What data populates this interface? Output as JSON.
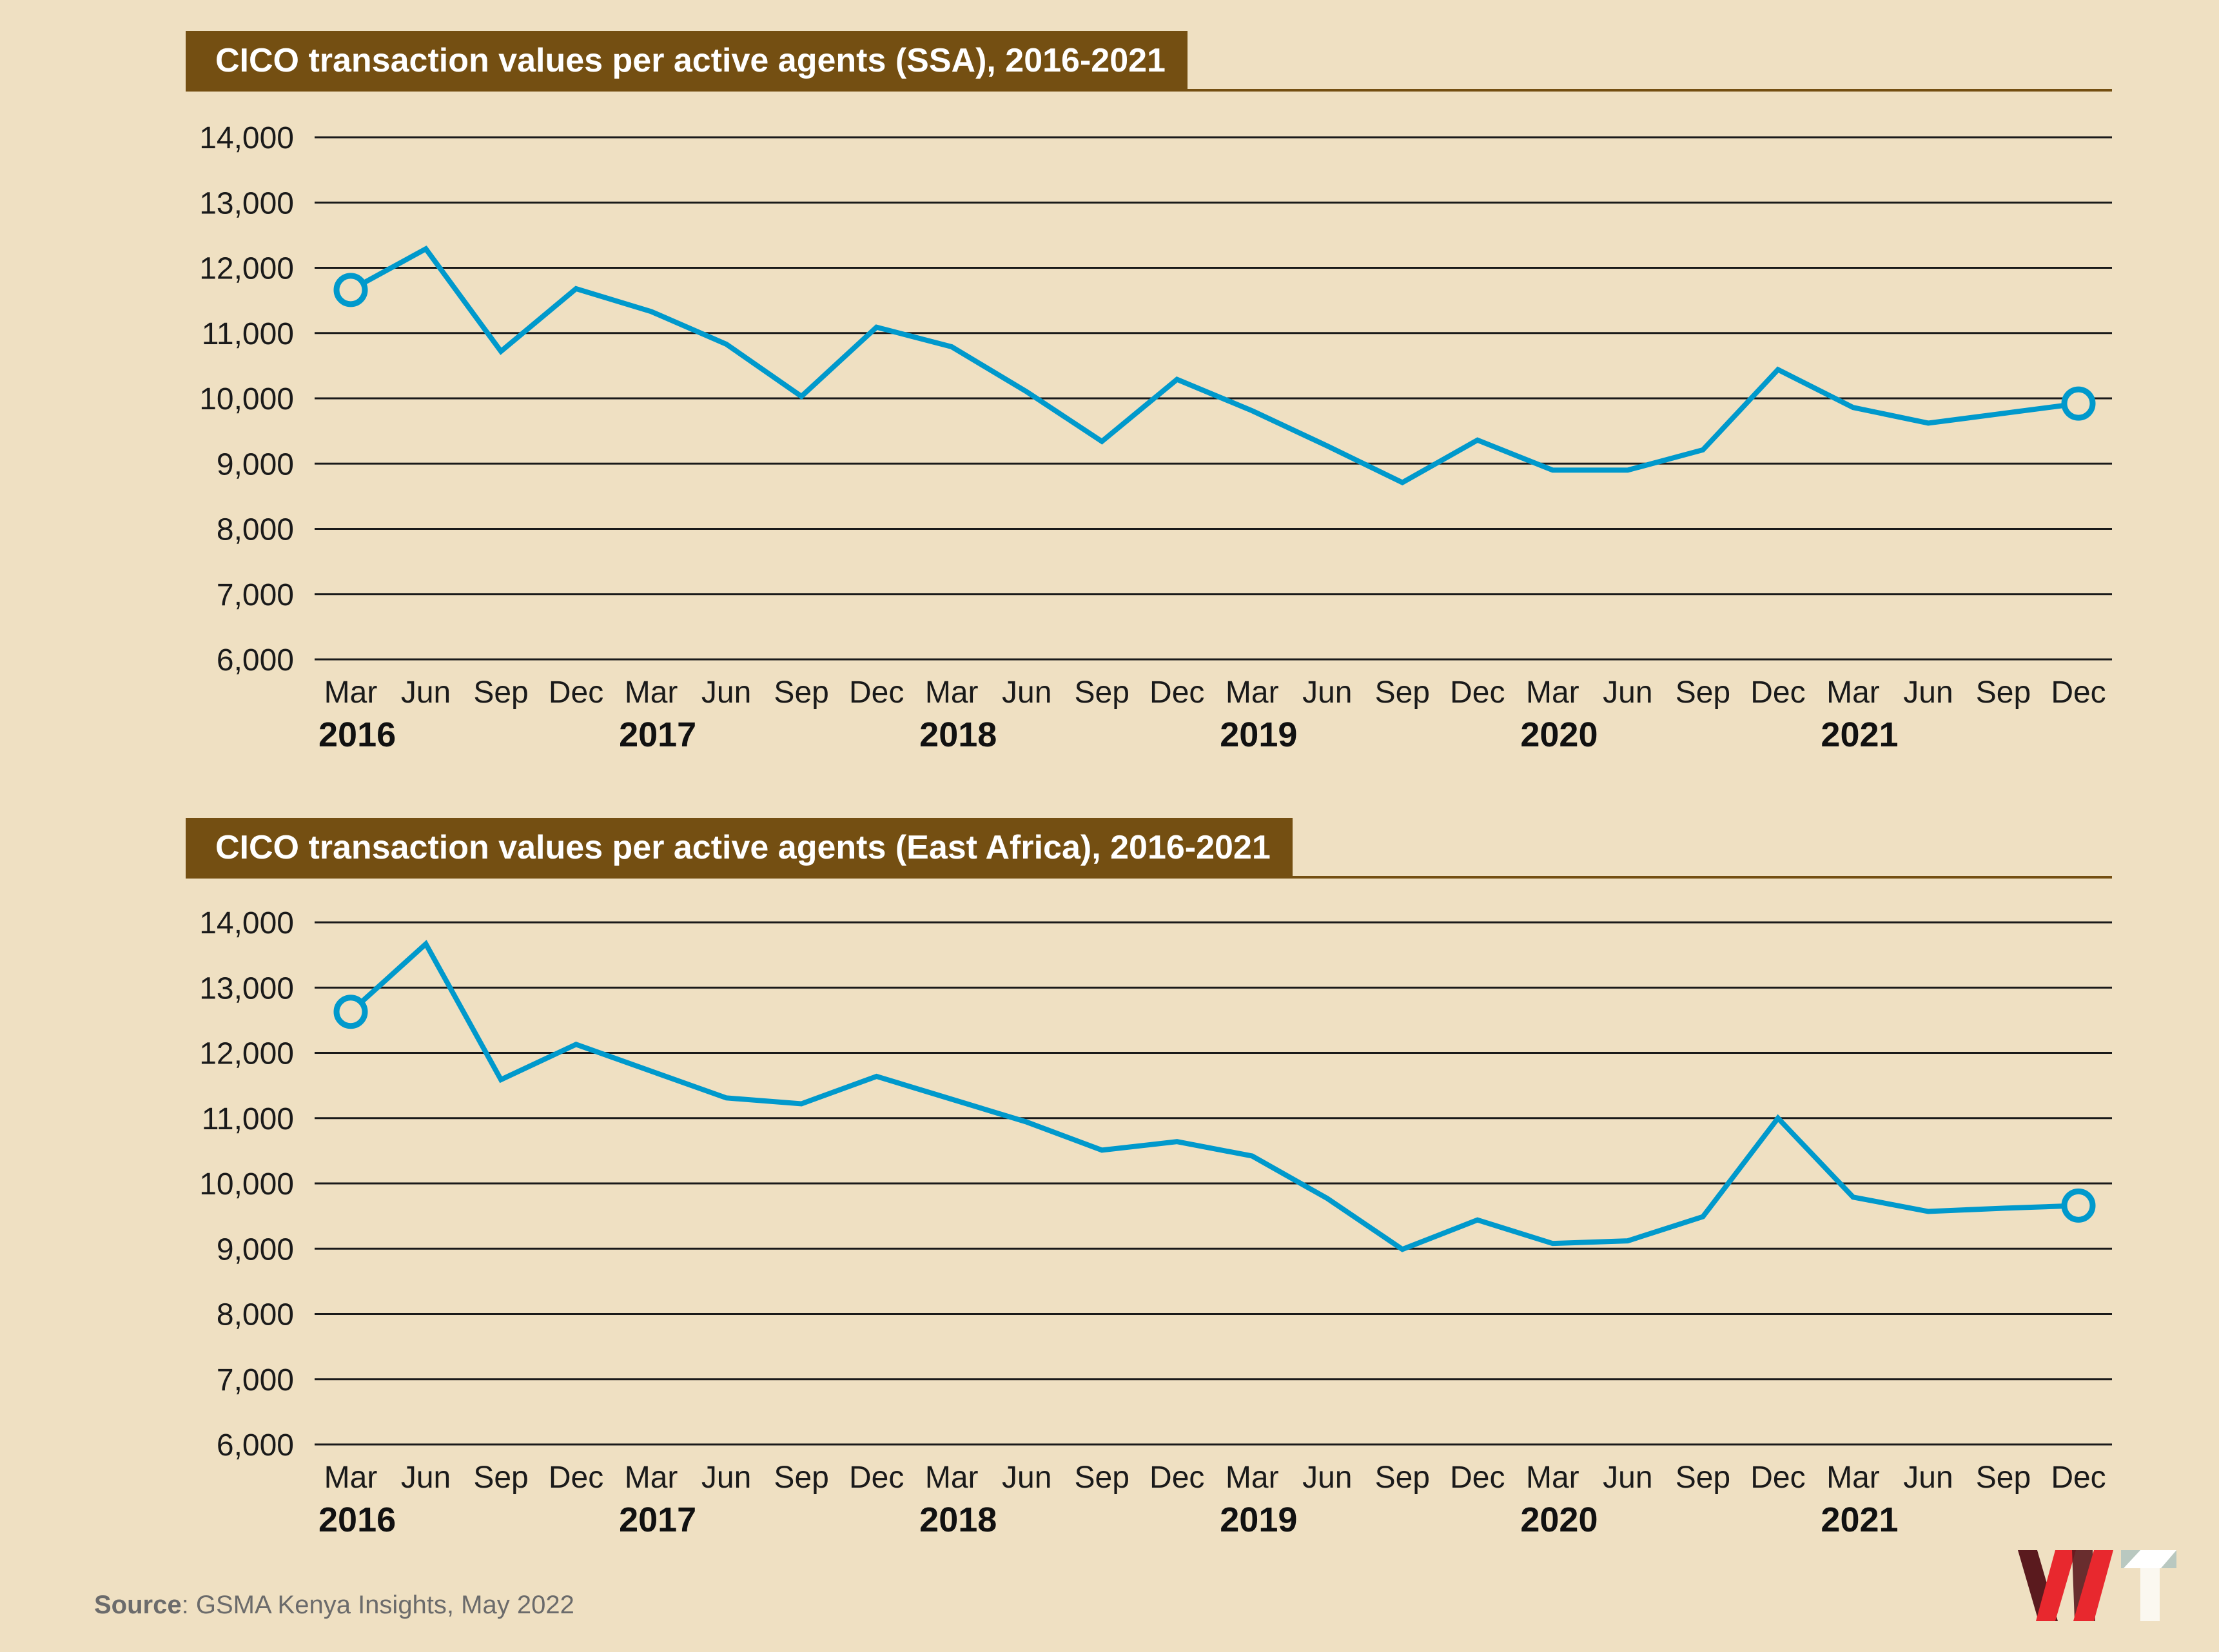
{
  "source": {
    "label": "Source",
    "text": ": GSMA Kenya Insights, May 2022"
  },
  "logo": {
    "name": "WT",
    "colors": {
      "dark_red": "#5a1a1e",
      "red": "#e8282e",
      "gray": "#b9c8c0",
      "white": "#ffffff"
    }
  },
  "colors": {
    "background": "#efe0c2",
    "title_bar": "#744f12",
    "line": "#0099cc",
    "grid": "#1a1a1a"
  },
  "chart_data": [
    {
      "type": "line",
      "title": "CICO transaction values per active agents (SSA), 2016-2021",
      "xlabel": "",
      "ylabel": "",
      "ylim": [
        6000,
        14000
      ],
      "yticks": [
        "14,000",
        "13,000",
        "12,000",
        "11,000",
        "10,000",
        "9,000",
        "8,000",
        "7,000",
        "6,000"
      ],
      "ytick_values": [
        14000,
        13000,
        12000,
        11000,
        10000,
        9000,
        8000,
        7000,
        6000
      ],
      "grid": true,
      "months": [
        "Mar",
        "Jun",
        "Sep",
        "Dec",
        "Mar",
        "Jun",
        "Sep",
        "Dec",
        "Mar",
        "Jun",
        "Sep",
        "Dec",
        "Mar",
        "Jun",
        "Sep",
        "Dec",
        "Mar",
        "Jun",
        "Sep",
        "Dec",
        "Mar",
        "Jun",
        "Sep",
        "Dec"
      ],
      "years": [
        {
          "label": "2016",
          "index": 0
        },
        {
          "label": "2017",
          "index": 4
        },
        {
          "label": "2018",
          "index": 8
        },
        {
          "label": "2019",
          "index": 12
        },
        {
          "label": "2020",
          "index": 16
        },
        {
          "label": "2021",
          "index": 20
        }
      ],
      "series": [
        {
          "name": "SSA",
          "color": "#0099cc",
          "values": [
            11660,
            12290,
            10720,
            11680,
            11330,
            10830,
            10030,
            11090,
            10790,
            10100,
            9340,
            10290,
            9810,
            9270,
            8710,
            9360,
            8900,
            8900,
            9210,
            10440,
            9860,
            9620,
            9770,
            9920
          ]
        }
      ],
      "endpoint_markers": true
    },
    {
      "type": "line",
      "title": "CICO transaction values per active agents (East Africa), 2016-2021",
      "xlabel": "",
      "ylabel": "",
      "ylim": [
        6000,
        14000
      ],
      "yticks": [
        "14,000",
        "13,000",
        "12,000",
        "11,000",
        "10,000",
        "9,000",
        "8,000",
        "7,000",
        "6,000"
      ],
      "ytick_values": [
        14000,
        13000,
        12000,
        11000,
        10000,
        9000,
        8000,
        7000,
        6000
      ],
      "grid": true,
      "months": [
        "Mar",
        "Jun",
        "Sep",
        "Dec",
        "Mar",
        "Jun",
        "Sep",
        "Dec",
        "Mar",
        "Jun",
        "Sep",
        "Dec",
        "Mar",
        "Jun",
        "Sep",
        "Dec",
        "Mar",
        "Jun",
        "Sep",
        "Dec",
        "Mar",
        "Jun",
        "Sep",
        "Dec"
      ],
      "years": [
        {
          "label": "2016",
          "index": 0
        },
        {
          "label": "2017",
          "index": 4
        },
        {
          "label": "2018",
          "index": 8
        },
        {
          "label": "2019",
          "index": 12
        },
        {
          "label": "2020",
          "index": 16
        },
        {
          "label": "2021",
          "index": 20
        }
      ],
      "series": [
        {
          "name": "East Africa",
          "color": "#0099cc",
          "values": [
            12630,
            13670,
            11590,
            12130,
            11720,
            11310,
            11220,
            11640,
            11290,
            10940,
            10510,
            10640,
            10420,
            9770,
            8990,
            9440,
            9080,
            9120,
            9490,
            11000,
            9790,
            9570,
            9620,
            9660
          ]
        }
      ],
      "endpoint_markers": true
    }
  ]
}
